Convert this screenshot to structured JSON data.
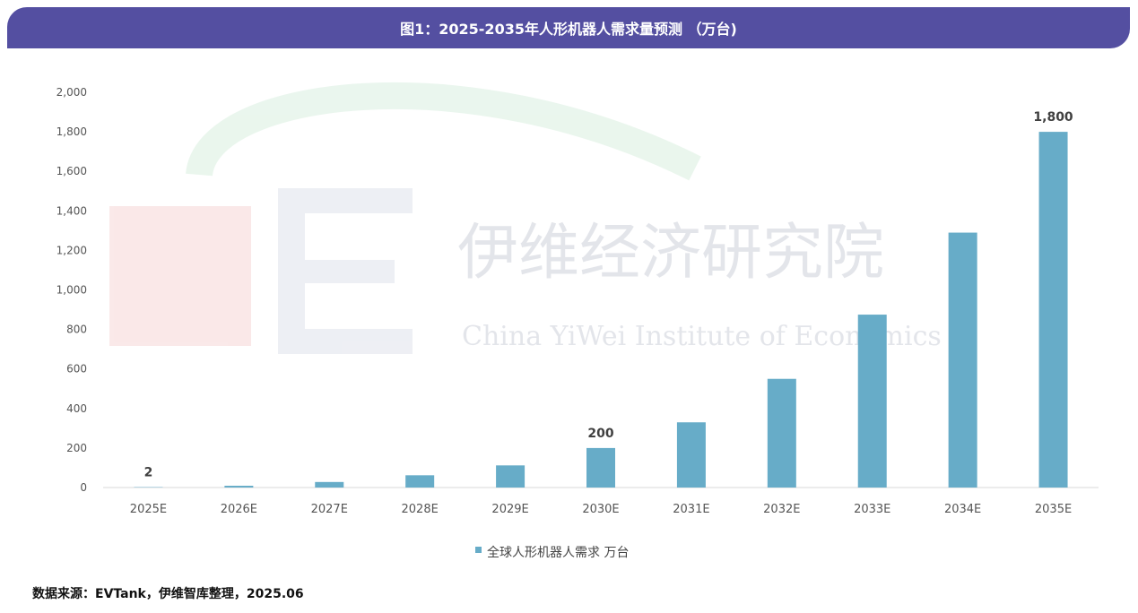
{
  "header": {
    "title": "图1：2025-2035年人形机器人需求量预测 （万台)"
  },
  "source": "数据来源：EVTank，伊维智库整理，2025.06",
  "watermark": {
    "text_cn": "伊维经济研究院",
    "text_en": "China YiWei Institute of Economics",
    "logo_cn": "伊维智库",
    "logo_en": "EVTank"
  },
  "chart_data": {
    "type": "bar",
    "categories": [
      "2025E",
      "2026E",
      "2027E",
      "2028E",
      "2029E",
      "2030E",
      "2031E",
      "2032E",
      "2033E",
      "2034E",
      "2035E"
    ],
    "series": [
      {
        "name": "全球人形机器人需求 万台",
        "values": [
          2,
          9,
          28,
          62,
          112,
          200,
          330,
          550,
          875,
          1290,
          1800
        ],
        "color": "#67acc8"
      }
    ],
    "data_labels": {
      "0": "2",
      "5": "200",
      "10": "1,800"
    },
    "yticks": [
      "0",
      "200",
      "400",
      "600",
      "800",
      "1,000",
      "1,200",
      "1,400",
      "1,600",
      "1,800",
      "2,000"
    ],
    "ylim": [
      0,
      2000
    ],
    "grid": false,
    "legend": "bottom"
  }
}
